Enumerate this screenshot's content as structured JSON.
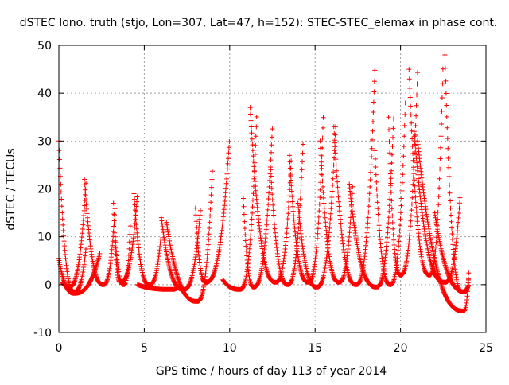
{
  "chart_data": {
    "type": "scatter",
    "title": "dSTEC Iono. truth (stjo, Lon=307, Lat=47, h=152): STEC-STEC_elemax in phase cont.",
    "xlabel": "GPS time / hours of day 113 of year 2014",
    "ylabel": "dSTEC  / TECUs",
    "xlim": [
      0,
      25
    ],
    "ylim": [
      -10,
      50
    ],
    "x_ticks": [
      0,
      5,
      10,
      15,
      20,
      25
    ],
    "y_ticks": [
      -10,
      0,
      10,
      20,
      30,
      40,
      50
    ],
    "grid": true,
    "marker": "plus",
    "color": "#ff0000",
    "arcs": [
      {
        "t0": 0.0,
        "t1": 1.6,
        "tmin": 0.9,
        "peak_start": 30,
        "peak_end": 8,
        "min": -1.5
      },
      {
        "t0": 0.0,
        "t1": 2.4,
        "tmin": 0.9,
        "peak_start": 5.5,
        "peak_end": 6.5,
        "min": -1.8
      },
      {
        "t0": 0.2,
        "t1": 1.6,
        "tmin": 0.6,
        "peak_start": 0.5,
        "peak_end": 22,
        "min": -0.5
      },
      {
        "t0": 1.5,
        "t1": 3.3,
        "tmin": 2.6,
        "peak_start": 22,
        "peak_end": 17,
        "min": 0.0
      },
      {
        "t0": 3.2,
        "t1": 4.6,
        "tmin": 3.6,
        "peak_start": 17,
        "peak_end": 19,
        "min": 0.5
      },
      {
        "t0": 3.3,
        "t1": 4.2,
        "tmin": 3.8,
        "peak_start": 10,
        "peak_end": 14,
        "min": 0.0
      },
      {
        "t0": 4.4,
        "t1": 6.0,
        "tmin": 5.3,
        "peak_start": 19,
        "peak_end": 11,
        "min": 0.0
      },
      {
        "t0": 4.6,
        "t1": 7.1,
        "tmin": 6.6,
        "peak_start": 0,
        "peak_end": 0,
        "min": -1.0
      },
      {
        "t0": 6.0,
        "t1": 8.3,
        "tmin": 7.3,
        "peak_start": 14,
        "peak_end": 16,
        "min": -1.0
      },
      {
        "t0": 6.3,
        "t1": 9.0,
        "tmin": 8.1,
        "peak_start": 13,
        "peak_end": 25,
        "min": -3.5
      },
      {
        "t0": 8.0,
        "t1": 10.0,
        "tmin": 8.6,
        "peak_start": 16,
        "peak_end": 31,
        "min": 0.5
      },
      {
        "t0": 9.6,
        "t1": 11.6,
        "tmin": 10.6,
        "peak_start": 1,
        "peak_end": 37,
        "min": -1.0
      },
      {
        "t0": 10.8,
        "t1": 12.5,
        "tmin": 11.4,
        "peak_start": 18,
        "peak_end": 33,
        "min": -0.5
      },
      {
        "t0": 11.2,
        "t1": 13.6,
        "tmin": 12.7,
        "peak_start": 37,
        "peak_end": 26,
        "min": 0.5
      },
      {
        "t0": 12.4,
        "t1": 14.3,
        "tmin": 13.4,
        "peak_start": 24,
        "peak_end": 30,
        "min": 0.0
      },
      {
        "t0": 13.5,
        "t1": 15.5,
        "tmin": 14.6,
        "peak_start": 27,
        "peak_end": 37,
        "min": 0.5
      },
      {
        "t0": 14.0,
        "t1": 16.2,
        "tmin": 15.1,
        "peak_start": 17,
        "peak_end": 33,
        "min": -0.5
      },
      {
        "t0": 15.3,
        "t1": 17.2,
        "tmin": 16.4,
        "peak_start": 30,
        "peak_end": 21,
        "min": 0.5
      },
      {
        "t0": 16.1,
        "t1": 18.5,
        "tmin": 17.4,
        "peak_start": 33,
        "peak_end": 45,
        "min": 0.0
      },
      {
        "t0": 17.0,
        "t1": 19.6,
        "tmin": 18.6,
        "peak_start": 21,
        "peak_end": 35,
        "min": -0.5
      },
      {
        "t0": 18.5,
        "t1": 20.3,
        "tmin": 19.4,
        "peak_start": 28,
        "peak_end": 40,
        "min": 0.0
      },
      {
        "t0": 19.3,
        "t1": 21.0,
        "tmin": 20.0,
        "peak_start": 35,
        "peak_end": 45,
        "min": 2.0
      },
      {
        "t0": 20.5,
        "t1": 22.5,
        "tmin": 21.7,
        "peak_start": 45,
        "peak_end": 48,
        "min": 2.0
      },
      {
        "t0": 20.8,
        "t1": 23.5,
        "tmin": 22.6,
        "peak_start": 32,
        "peak_end": 19,
        "min": 0.5
      },
      {
        "t0": 21.0,
        "t1": 24.0,
        "tmin": 23.7,
        "peak_start": 30,
        "peak_end": 3,
        "min": -5.5
      },
      {
        "t0": 22.6,
        "t1": 24.0,
        "tmin": 23.6,
        "peak_start": 48,
        "peak_end": 0,
        "min": -1.5
      },
      {
        "t0": 22.0,
        "t1": 24.0,
        "tmin": 23.8,
        "peak_start": 15,
        "peak_end": 2,
        "min": -1.5
      }
    ]
  }
}
